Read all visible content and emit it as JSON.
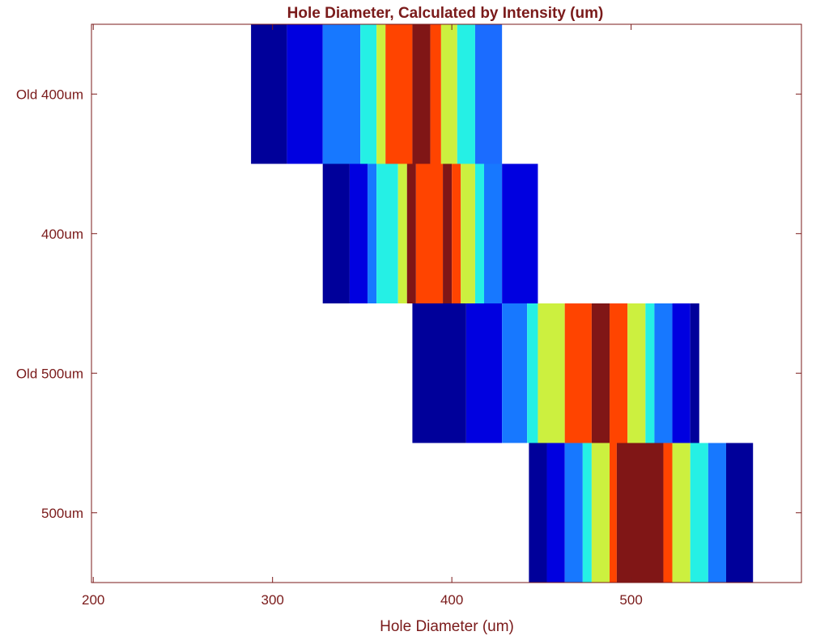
{
  "chart_data": {
    "type": "heatmap",
    "title": "Hole Diameter, Calculated by Intensity (um)",
    "xlabel": "Hole Diameter (um)",
    "ylabel": "",
    "xlim": [
      199,
      595
    ],
    "xticks": [
      200,
      300,
      400,
      500
    ],
    "grid": false,
    "colormap": "jet",
    "rows": [
      {
        "label": "Old 400um",
        "x": [
          288,
          308,
          328,
          349,
          358,
          363,
          378,
          388,
          394,
          403,
          413,
          428
        ],
        "colors": [
          "#00009a",
          "#0000e0",
          "#1778ff",
          "#25f0e5",
          "#ccf03f",
          "#ff4400",
          "#801616",
          "#ff4400",
          "#ccf03f",
          "#25f0e5",
          "#1b6cff",
          "#0000e0"
        ]
      },
      {
        "label": "400um",
        "x": [
          328,
          343,
          353,
          358,
          370,
          375,
          380,
          395,
          400,
          405,
          413,
          418,
          428,
          448
        ],
        "colors": [
          "#00009a",
          "#0000e0",
          "#1778ff",
          "#25f0e5",
          "#ccf03f",
          "#801616",
          "#ff4400",
          "#801616",
          "#ff4400",
          "#ccf03f",
          "#25f0e5",
          "#1778ff",
          "#0000e0"
        ]
      },
      {
        "label": "Old 500um",
        "x": [
          378,
          408,
          428,
          442,
          448,
          463,
          478,
          488,
          498,
          508,
          513,
          523,
          533,
          538
        ],
        "colors": [
          "#00009a",
          "#0000e0",
          "#1778ff",
          "#25f0e5",
          "#ccf03f",
          "#ff4400",
          "#801616",
          "#ff4400",
          "#ccf03f",
          "#25f0e5",
          "#1778ff",
          "#0000e0",
          "#00009a"
        ]
      },
      {
        "label": "500um",
        "x": [
          443,
          453,
          463,
          473,
          478,
          488,
          492,
          518,
          523,
          533,
          543,
          553,
          568
        ],
        "colors": [
          "#00009a",
          "#0000e0",
          "#1778ff",
          "#25f0e5",
          "#ccf03f",
          "#ff4400",
          "#801616",
          "#ff4400",
          "#ccf03f",
          "#25f0e5",
          "#1778ff",
          "#00009a"
        ]
      }
    ]
  }
}
